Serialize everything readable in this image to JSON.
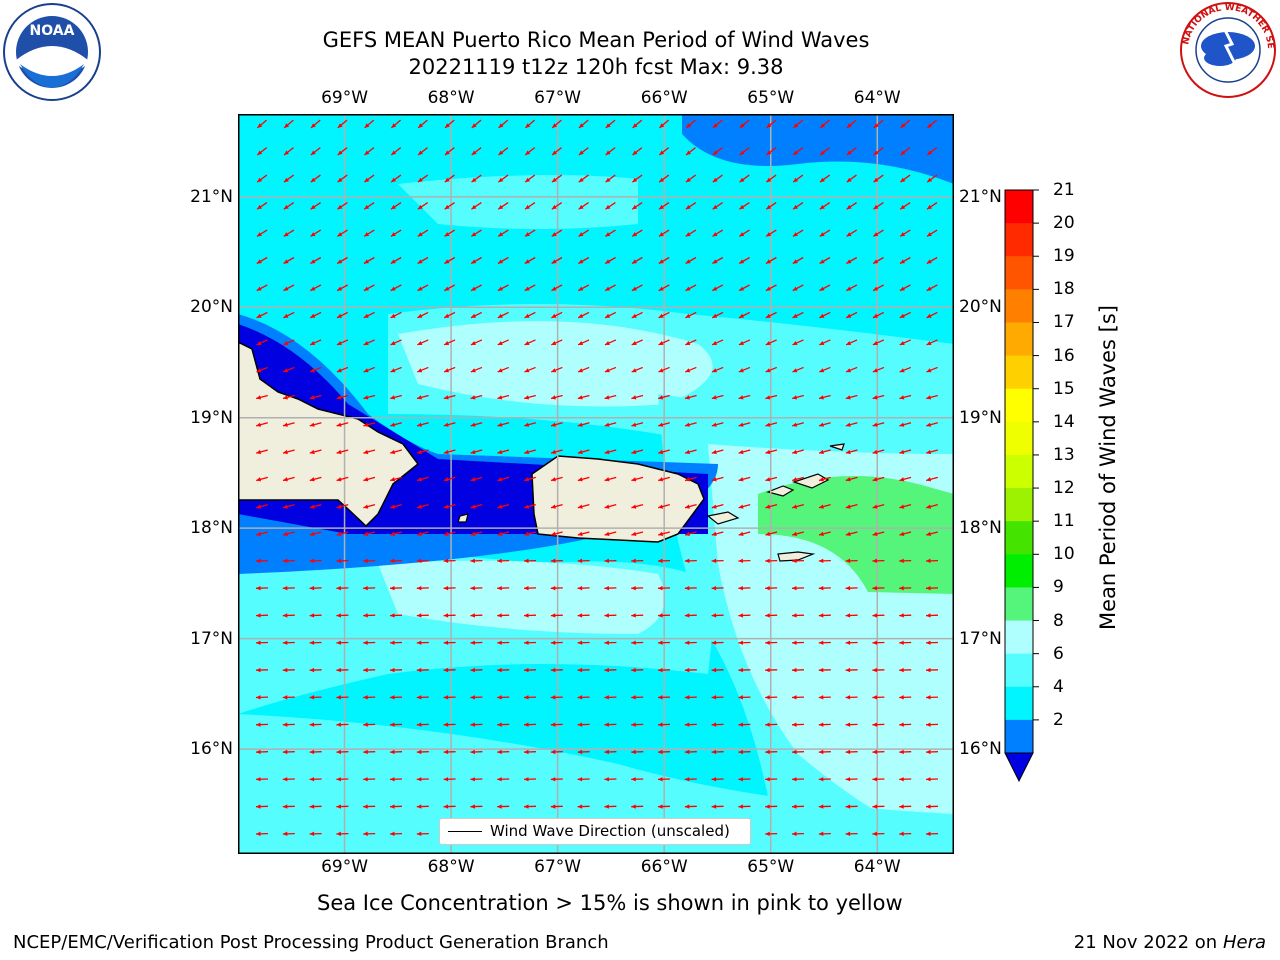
{
  "title": {
    "line1": "GEFS MEAN Puerto Rico Mean Period of Wind Waves",
    "line2": "20221119 t12z 120h fcst   Max: 9.38"
  },
  "logos": {
    "noaa": {
      "text": "NOAA",
      "icon": "noaa-logo-icon"
    },
    "nws": {
      "text": "NATIONAL WEATHER SERVICE",
      "icon": "nws-logo-icon"
    }
  },
  "map": {
    "lon_labels": [
      "69°W",
      "68°W",
      "67°W",
      "66°W",
      "65°W",
      "64°W"
    ],
    "lat_labels": [
      "21°N",
      "20°N",
      "19°N",
      "18°N",
      "17°N",
      "16°N"
    ],
    "extent": {
      "lon": [
        -70.0,
        -63.28
      ],
      "lat": [
        15.05,
        21.75
      ]
    },
    "grid": true,
    "arrow_color": "#ff0000",
    "land_color": "#f0eedc"
  },
  "colorbar": {
    "label": "Mean Period of Wind Waves [s]",
    "ticks": [
      "21",
      "20",
      "19",
      "18",
      "17",
      "16",
      "15",
      "14",
      "13",
      "12",
      "11",
      "10",
      "9",
      "8",
      "6",
      "4",
      "2"
    ],
    "colors": [
      "#ff0000",
      "#ff2a00",
      "#ff5500",
      "#ff8000",
      "#ffaa00",
      "#ffd000",
      "#ffff00",
      "#f0ff00",
      "#ccff00",
      "#9cf200",
      "#44e400",
      "#00ee00",
      "#55f47b",
      "#b0ffff",
      "#55fdff",
      "#00f5ff",
      "#0080ff"
    ],
    "under_color": "#0000e0"
  },
  "legend": {
    "label": "Wind Wave Direction (unscaled)"
  },
  "note": "Sea Ice Concentration > 15% is shown in pink to yellow",
  "footer": {
    "left": "NCEP/EMC/Verification Post Processing Product Generation Branch",
    "date": "21 Nov 2022 on",
    "machine": "Hera"
  }
}
